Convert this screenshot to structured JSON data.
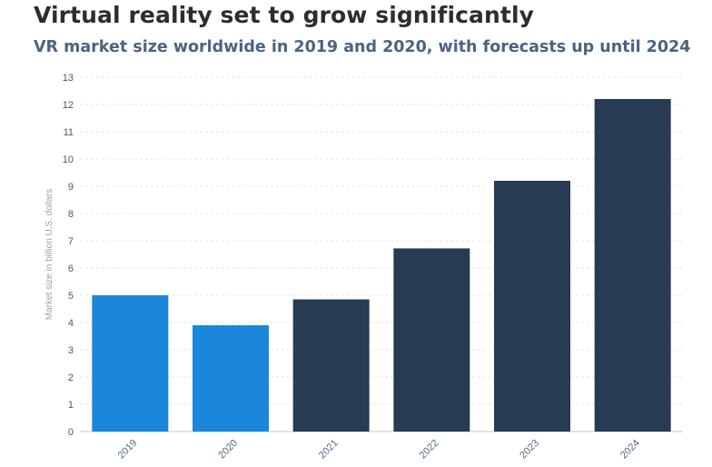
{
  "header": {
    "title": "Virtual reality set to grow significantly",
    "subtitle": "VR market size worldwide in 2019 and 2020, with forecasts up until 2024"
  },
  "chart_data": {
    "type": "bar",
    "categories": [
      "2019",
      "2020",
      "2021",
      "2022",
      "2023",
      "2024"
    ],
    "values": [
      5.0,
      3.9,
      4.85,
      6.72,
      9.2,
      12.2
    ],
    "bar_colors": [
      "#1b87db",
      "#1b87db",
      "#273b52",
      "#273b52",
      "#273b52",
      "#273b52"
    ],
    "ylabel": "Market size in billion U.S. dollars",
    "xlabel": "",
    "ylim": [
      0,
      13
    ],
    "yticks": [
      "0",
      "1",
      "2",
      "3",
      "4",
      "5",
      "6",
      "7",
      "8",
      "9",
      "10",
      "11",
      "12",
      "13"
    ],
    "grid": true,
    "legend": "none"
  }
}
